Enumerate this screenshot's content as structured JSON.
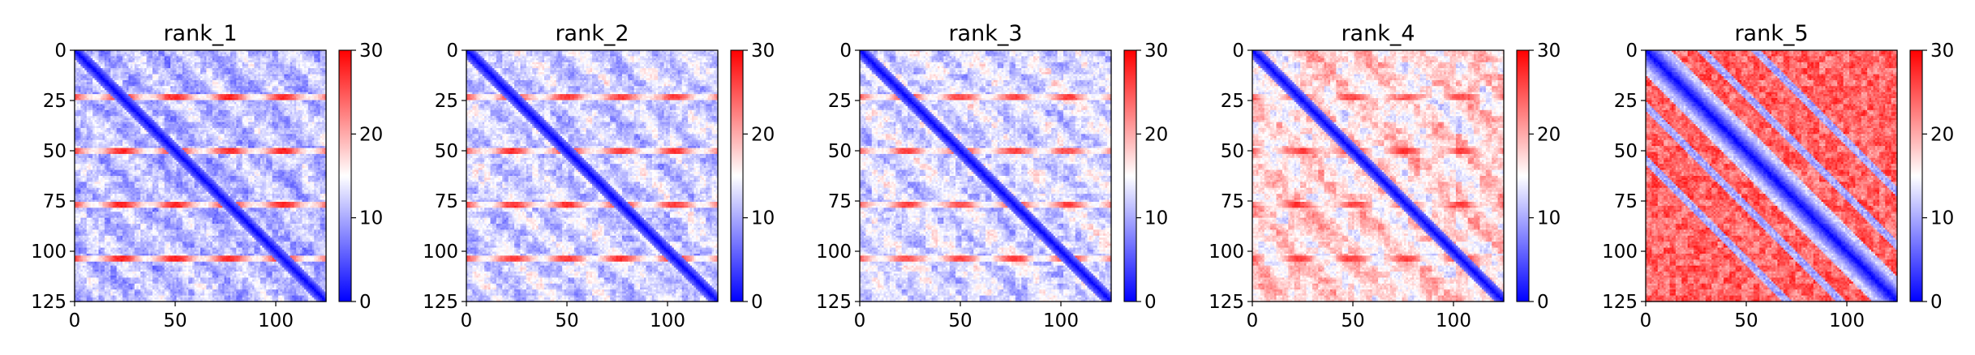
{
  "figure": {
    "colormap": {
      "name": "bwr",
      "low": "#0000ff",
      "mid": "#ffffff",
      "high": "#ff0000"
    }
  },
  "chart_data": [
    {
      "type": "heatmap",
      "title": "rank_1",
      "n": 126,
      "xlim": [
        0,
        125
      ],
      "ylim": [
        125,
        0
      ],
      "x_ticks": [
        "0",
        "50",
        "100"
      ],
      "y_ticks": [
        "0",
        "25",
        "50",
        "75",
        "100",
        "125"
      ],
      "color_range": [
        0,
        30
      ],
      "colorbar_ticks": [
        "0",
        "10",
        "20",
        "30"
      ],
      "pattern": {
        "diagonal_min": 0,
        "off_diagonal_mean": 10.5,
        "block_period": 27,
        "band_rows": [
          23,
          50,
          77,
          104
        ],
        "band_max": 27,
        "red_fraction": 0.12
      }
    },
    {
      "type": "heatmap",
      "title": "rank_2",
      "n": 126,
      "xlim": [
        0,
        125
      ],
      "ylim": [
        125,
        0
      ],
      "x_ticks": [
        "0",
        "50",
        "100"
      ],
      "y_ticks": [
        "0",
        "25",
        "50",
        "75",
        "100",
        "125"
      ],
      "color_range": [
        0,
        30
      ],
      "colorbar_ticks": [
        "0",
        "10",
        "20",
        "30"
      ],
      "pattern": {
        "diagonal_min": 0,
        "off_diagonal_mean": 11.5,
        "block_period": 27,
        "band_rows": [
          23,
          50,
          77,
          104
        ],
        "band_max": 26,
        "red_fraction": 0.15
      }
    },
    {
      "type": "heatmap",
      "title": "rank_3",
      "n": 126,
      "xlim": [
        0,
        125
      ],
      "ylim": [
        125,
        0
      ],
      "x_ticks": [
        "0",
        "50",
        "100"
      ],
      "y_ticks": [
        "0",
        "25",
        "50",
        "75",
        "100",
        "125"
      ],
      "color_range": [
        0,
        30
      ],
      "colorbar_ticks": [
        "0",
        "10",
        "20",
        "30"
      ],
      "pattern": {
        "diagonal_min": 0,
        "off_diagonal_mean": 12,
        "block_period": 27,
        "band_rows": [
          23,
          50,
          77,
          104
        ],
        "band_max": 25,
        "red_fraction": 0.18
      }
    },
    {
      "type": "heatmap",
      "title": "rank_4",
      "n": 126,
      "xlim": [
        0,
        125
      ],
      "ylim": [
        125,
        0
      ],
      "x_ticks": [
        "0",
        "50",
        "100"
      ],
      "y_ticks": [
        "0",
        "25",
        "50",
        "75",
        "100",
        "125"
      ],
      "color_range": [
        0,
        30
      ],
      "colorbar_ticks": [
        "0",
        "10",
        "20",
        "30"
      ],
      "pattern": {
        "diagonal_min": 0,
        "off_diagonal_mean": 15,
        "block_period": 27,
        "band_rows": [
          23,
          50,
          77,
          104
        ],
        "band_max": 24,
        "red_fraction": 0.35
      }
    },
    {
      "type": "heatmap",
      "title": "rank_5",
      "n": 126,
      "xlim": [
        0,
        125
      ],
      "ylim": [
        125,
        0
      ],
      "x_ticks": [
        "0",
        "50",
        "100"
      ],
      "y_ticks": [
        "0",
        "25",
        "50",
        "75",
        "100",
        "125"
      ],
      "color_range": [
        0,
        30
      ],
      "colorbar_ticks": [
        "0",
        "10",
        "20",
        "30"
      ],
      "pattern": {
        "diagonal_min": 0,
        "off_diagonal_mean": 24,
        "diagonal_band_width": 9,
        "secondary_bands": [
          28,
          55
        ],
        "red_fraction": 0.75
      }
    }
  ]
}
